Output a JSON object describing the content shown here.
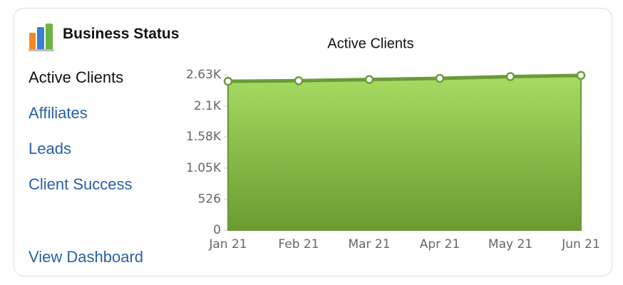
{
  "header": {
    "title": "Business Status"
  },
  "nav": [
    "Active Clients",
    "Affiliates",
    "Leads",
    "Client Success"
  ],
  "footer_link": "View Dashboard",
  "chart_data": {
    "type": "area",
    "title": "Active Clients",
    "categories": [
      "Jan 21",
      "Feb 21",
      "Mar 21",
      "Apr 21",
      "May 21",
      "Jun 21"
    ],
    "values": [
      2520,
      2530,
      2550,
      2570,
      2600,
      2620
    ],
    "color": "#7aab3e",
    "ylim": [
      0,
      2630
    ],
    "yticks": [
      0,
      526,
      {
        "value": 1050,
        "label": "1.05K"
      },
      {
        "value": 1580,
        "label": "1.58K"
      },
      {
        "value": 2100,
        "label": "2.1K"
      },
      {
        "value": 2630,
        "label": "2.63K"
      }
    ],
    "grid": false
  }
}
